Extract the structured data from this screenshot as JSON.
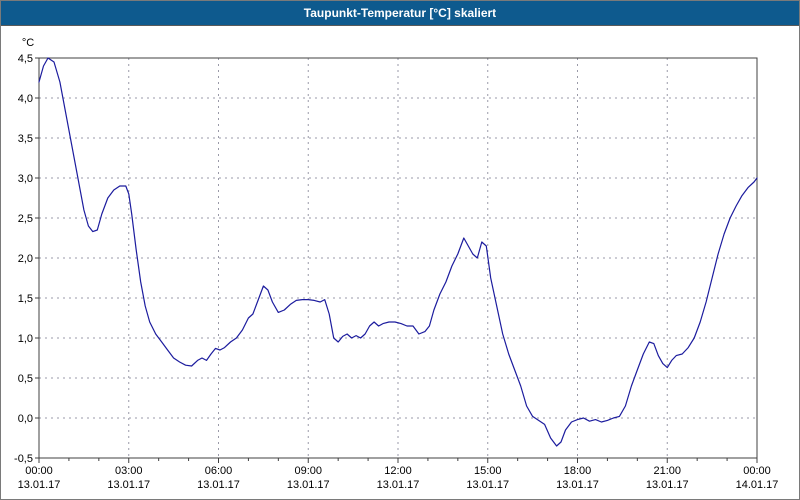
{
  "title_bar": {
    "text": "Taupunkt-Temperatur [°C] skaliert",
    "bg_color": "#0e5a8e",
    "text_color": "#ffffff"
  },
  "chart_data": {
    "type": "line",
    "title": "Taupunkt-Temperatur [°C] skaliert",
    "ylabel": "°C",
    "xlabel": "",
    "xlim": [
      0,
      24
    ],
    "ylim": [
      -0.5,
      4.5
    ],
    "grid": "dashed",
    "legend": "none",
    "line_color": "#1c1c9e",
    "grid_color": "#9a9aa8",
    "axis_color": "#404040",
    "y_ticks": [
      {
        "value": 4.5,
        "label": "4,5"
      },
      {
        "value": 4.0,
        "label": "4,0"
      },
      {
        "value": 3.5,
        "label": "3,5"
      },
      {
        "value": 3.0,
        "label": "3,0"
      },
      {
        "value": 2.5,
        "label": "2,5"
      },
      {
        "value": 2.0,
        "label": "2,0"
      },
      {
        "value": 1.5,
        "label": "1,5"
      },
      {
        "value": 1.0,
        "label": "1,0"
      },
      {
        "value": 0.5,
        "label": "0,5"
      },
      {
        "value": 0.0,
        "label": "0,0"
      },
      {
        "value": -0.5,
        "label": "-0,5"
      }
    ],
    "x_ticks": [
      {
        "hour": 0,
        "time": "00:00",
        "date": "13.01.17"
      },
      {
        "hour": 3,
        "time": "03:00",
        "date": "13.01.17"
      },
      {
        "hour": 6,
        "time": "06:00",
        "date": "13.01.17"
      },
      {
        "hour": 9,
        "time": "09:00",
        "date": "13.01.17"
      },
      {
        "hour": 12,
        "time": "12:00",
        "date": "13.01.17"
      },
      {
        "hour": 15,
        "time": "15:00",
        "date": "13.01.17"
      },
      {
        "hour": 18,
        "time": "18:00",
        "date": "13.01.17"
      },
      {
        "hour": 21,
        "time": "21:00",
        "date": "13.01.17"
      },
      {
        "hour": 24,
        "time": "00:00",
        "date": "14.01.17"
      }
    ],
    "series": [
      {
        "name": "Taupunkt-Temperatur",
        "points": [
          [
            0,
            4.2
          ],
          [
            0.15,
            4.4
          ],
          [
            0.3,
            4.5
          ],
          [
            0.5,
            4.45
          ],
          [
            0.7,
            4.2
          ],
          [
            0.9,
            3.8
          ],
          [
            1.1,
            3.4
          ],
          [
            1.3,
            3.0
          ],
          [
            1.5,
            2.6
          ],
          [
            1.65,
            2.4
          ],
          [
            1.8,
            2.33
          ],
          [
            1.95,
            2.35
          ],
          [
            2.1,
            2.55
          ],
          [
            2.3,
            2.75
          ],
          [
            2.5,
            2.85
          ],
          [
            2.7,
            2.9
          ],
          [
            2.9,
            2.9
          ],
          [
            3.0,
            2.8
          ],
          [
            3.1,
            2.55
          ],
          [
            3.25,
            2.1
          ],
          [
            3.4,
            1.7
          ],
          [
            3.55,
            1.4
          ],
          [
            3.7,
            1.2
          ],
          [
            3.9,
            1.05
          ],
          [
            4.1,
            0.95
          ],
          [
            4.3,
            0.85
          ],
          [
            4.5,
            0.75
          ],
          [
            4.7,
            0.7
          ],
          [
            4.9,
            0.66
          ],
          [
            5.1,
            0.65
          ],
          [
            5.3,
            0.72
          ],
          [
            5.45,
            0.75
          ],
          [
            5.6,
            0.72
          ],
          [
            5.75,
            0.8
          ],
          [
            5.9,
            0.87
          ],
          [
            6.05,
            0.85
          ],
          [
            6.2,
            0.88
          ],
          [
            6.4,
            0.95
          ],
          [
            6.6,
            1.0
          ],
          [
            6.8,
            1.1
          ],
          [
            7.0,
            1.25
          ],
          [
            7.15,
            1.3
          ],
          [
            7.3,
            1.45
          ],
          [
            7.5,
            1.65
          ],
          [
            7.65,
            1.6
          ],
          [
            7.8,
            1.45
          ],
          [
            8.0,
            1.32
          ],
          [
            8.2,
            1.35
          ],
          [
            8.4,
            1.42
          ],
          [
            8.6,
            1.47
          ],
          [
            8.8,
            1.48
          ],
          [
            9.0,
            1.48
          ],
          [
            9.2,
            1.47
          ],
          [
            9.4,
            1.45
          ],
          [
            9.55,
            1.48
          ],
          [
            9.7,
            1.3
          ],
          [
            9.85,
            1.0
          ],
          [
            10.0,
            0.95
          ],
          [
            10.15,
            1.02
          ],
          [
            10.3,
            1.05
          ],
          [
            10.45,
            1.0
          ],
          [
            10.6,
            1.03
          ],
          [
            10.75,
            1.0
          ],
          [
            10.9,
            1.05
          ],
          [
            11.05,
            1.15
          ],
          [
            11.2,
            1.2
          ],
          [
            11.35,
            1.15
          ],
          [
            11.5,
            1.18
          ],
          [
            11.7,
            1.2
          ],
          [
            11.9,
            1.2
          ],
          [
            12.1,
            1.18
          ],
          [
            12.3,
            1.15
          ],
          [
            12.5,
            1.15
          ],
          [
            12.7,
            1.05
          ],
          [
            12.9,
            1.08
          ],
          [
            13.05,
            1.15
          ],
          [
            13.2,
            1.35
          ],
          [
            13.4,
            1.55
          ],
          [
            13.6,
            1.7
          ],
          [
            13.8,
            1.9
          ],
          [
            14.0,
            2.05
          ],
          [
            14.2,
            2.25
          ],
          [
            14.35,
            2.15
          ],
          [
            14.5,
            2.05
          ],
          [
            14.65,
            2.0
          ],
          [
            14.8,
            2.2
          ],
          [
            14.95,
            2.15
          ],
          [
            15.1,
            1.75
          ],
          [
            15.3,
            1.4
          ],
          [
            15.5,
            1.05
          ],
          [
            15.7,
            0.8
          ],
          [
            15.9,
            0.6
          ],
          [
            16.1,
            0.4
          ],
          [
            16.3,
            0.15
          ],
          [
            16.5,
            0.02
          ],
          [
            16.7,
            -0.03
          ],
          [
            16.9,
            -0.08
          ],
          [
            17.1,
            -0.25
          ],
          [
            17.3,
            -0.35
          ],
          [
            17.45,
            -0.3
          ],
          [
            17.6,
            -0.15
          ],
          [
            17.8,
            -0.05
          ],
          [
            18.0,
            -0.02
          ],
          [
            18.2,
            0.0
          ],
          [
            18.4,
            -0.04
          ],
          [
            18.6,
            -0.02
          ],
          [
            18.8,
            -0.05
          ],
          [
            19.0,
            -0.03
          ],
          [
            19.2,
            0.0
          ],
          [
            19.4,
            0.02
          ],
          [
            19.6,
            0.15
          ],
          [
            19.8,
            0.4
          ],
          [
            20.0,
            0.6
          ],
          [
            20.2,
            0.8
          ],
          [
            20.4,
            0.95
          ],
          [
            20.55,
            0.93
          ],
          [
            20.7,
            0.78
          ],
          [
            20.85,
            0.68
          ],
          [
            21.0,
            0.63
          ],
          [
            21.15,
            0.72
          ],
          [
            21.3,
            0.78
          ],
          [
            21.5,
            0.8
          ],
          [
            21.7,
            0.88
          ],
          [
            21.9,
            1.0
          ],
          [
            22.1,
            1.2
          ],
          [
            22.3,
            1.45
          ],
          [
            22.5,
            1.75
          ],
          [
            22.7,
            2.05
          ],
          [
            22.9,
            2.3
          ],
          [
            23.1,
            2.5
          ],
          [
            23.3,
            2.65
          ],
          [
            23.5,
            2.78
          ],
          [
            23.7,
            2.88
          ],
          [
            23.9,
            2.95
          ],
          [
            24,
            3.0
          ]
        ]
      }
    ]
  }
}
